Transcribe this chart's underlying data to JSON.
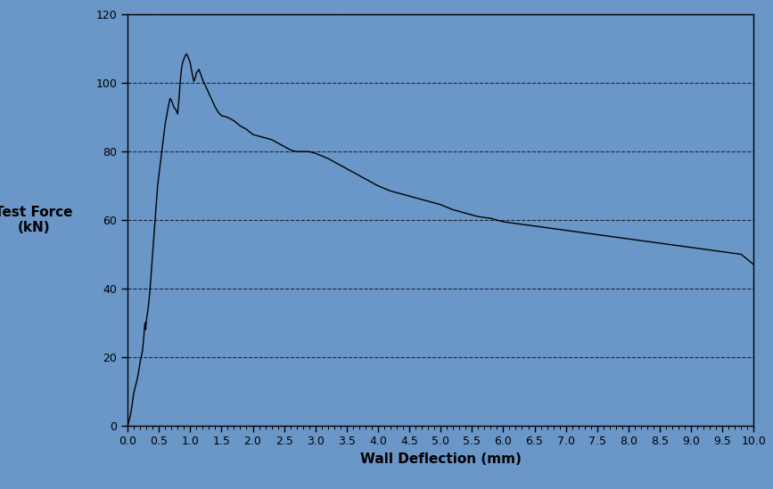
{
  "title": "",
  "xlabel": "Wall Deflection (mm)",
  "ylabel": "Test Force\n(kN)",
  "xlim": [
    0,
    10.0
  ],
  "ylim": [
    0,
    120
  ],
  "xticks": [
    0.0,
    0.5,
    1.0,
    1.5,
    2.0,
    2.5,
    3.0,
    3.5,
    4.0,
    4.5,
    5.0,
    5.5,
    6.0,
    6.5,
    7.0,
    7.5,
    8.0,
    8.5,
    9.0,
    9.5,
    10.0
  ],
  "yticks": [
    0,
    20,
    40,
    60,
    80,
    100,
    120
  ],
  "background_color": "#6b96c8",
  "line_color": "#000000",
  "grid_color": "#000000",
  "curve_x": [
    0.0,
    0.02,
    0.04,
    0.06,
    0.08,
    0.1,
    0.12,
    0.14,
    0.16,
    0.18,
    0.2,
    0.22,
    0.24,
    0.25,
    0.26,
    0.27,
    0.28,
    0.29,
    0.3,
    0.32,
    0.34,
    0.36,
    0.38,
    0.4,
    0.42,
    0.44,
    0.46,
    0.48,
    0.5,
    0.52,
    0.54,
    0.56,
    0.58,
    0.6,
    0.62,
    0.64,
    0.66,
    0.68,
    0.7,
    0.72,
    0.74,
    0.76,
    0.78,
    0.8,
    0.82,
    0.84,
    0.86,
    0.88,
    0.9,
    0.92,
    0.94,
    0.96,
    0.98,
    1.0,
    1.02,
    1.04,
    1.06,
    1.08,
    1.1,
    1.12,
    1.14,
    1.16,
    1.18,
    1.2,
    1.25,
    1.3,
    1.35,
    1.4,
    1.45,
    1.5,
    1.6,
    1.7,
    1.8,
    1.9,
    2.0,
    2.1,
    2.2,
    2.3,
    2.4,
    2.5,
    2.6,
    2.7,
    2.8,
    2.9,
    3.0,
    3.2,
    3.4,
    3.6,
    3.8,
    4.0,
    4.2,
    4.4,
    4.6,
    4.8,
    5.0,
    5.2,
    5.4,
    5.6,
    5.8,
    6.0,
    6.2,
    6.4,
    6.6,
    6.8,
    7.0,
    7.2,
    7.4,
    7.6,
    7.8,
    8.0,
    8.2,
    8.4,
    8.6,
    8.8,
    9.0,
    9.2,
    9.4,
    9.6,
    9.8,
    10.0
  ],
  "curve_y": [
    0.0,
    1.0,
    2.5,
    4.5,
    7.0,
    9.5,
    11.0,
    12.5,
    14.0,
    16.0,
    18.5,
    20.0,
    22.0,
    24.0,
    26.0,
    28.5,
    30.0,
    28.0,
    30.5,
    33.0,
    36.0,
    40.0,
    45.0,
    50.0,
    55.0,
    60.0,
    65.0,
    70.0,
    73.0,
    76.0,
    79.0,
    82.0,
    85.0,
    88.0,
    90.0,
    92.0,
    94.0,
    95.5,
    95.0,
    94.0,
    93.0,
    92.5,
    92.0,
    91.0,
    95.0,
    100.0,
    104.0,
    106.0,
    107.0,
    108.0,
    108.5,
    108.0,
    107.0,
    106.0,
    104.0,
    102.0,
    100.5,
    101.5,
    103.0,
    103.5,
    104.0,
    103.0,
    102.0,
    101.0,
    99.0,
    97.0,
    95.0,
    93.0,
    91.5,
    90.5,
    90.0,
    89.0,
    87.5,
    86.5,
    85.0,
    84.5,
    84.0,
    83.5,
    82.5,
    81.5,
    80.5,
    80.0,
    80.0,
    80.0,
    79.5,
    78.0,
    76.0,
    74.0,
    72.0,
    70.0,
    68.5,
    67.5,
    66.5,
    65.5,
    64.5,
    63.0,
    62.0,
    61.0,
    60.5,
    59.5,
    59.0,
    58.5,
    58.0,
    57.5,
    57.0,
    56.5,
    56.0,
    55.5,
    55.0,
    54.5,
    54.0,
    53.5,
    53.0,
    52.5,
    52.0,
    51.5,
    51.0,
    50.5,
    50.0,
    47.0
  ]
}
